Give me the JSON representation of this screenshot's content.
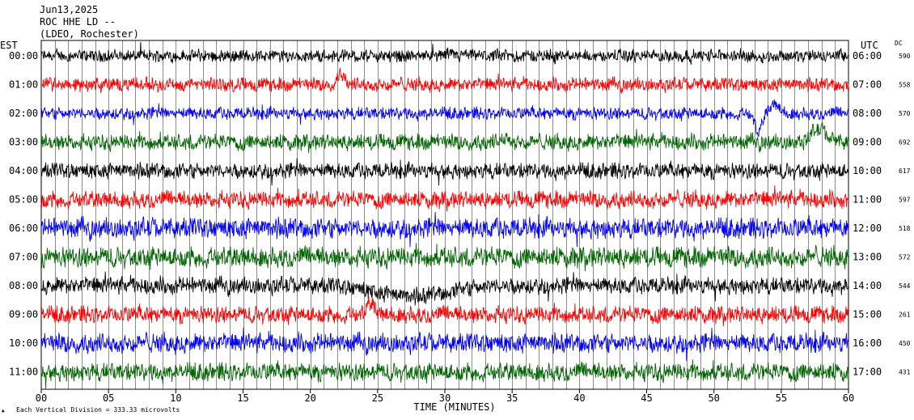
{
  "header": {
    "date": "Jun13,2025",
    "station": "ROC HHE LD --",
    "network": "(LDEO, Rochester)"
  },
  "labels": {
    "left_zone": "EST",
    "right_zone": "UTC",
    "dc_header": "DC",
    "x_axis_title": "TIME (MINUTES)",
    "scale_note": "Each Vertical Division =  333.33 microvolts"
  },
  "colors": {
    "background": "#ffffff",
    "grid": "#000000",
    "trace_cycle": [
      "#000000",
      "#ff0000",
      "#0000ff",
      "#006400"
    ]
  },
  "chart_data": {
    "type": "line",
    "title": "ROC HHE LD --",
    "xlabel": "TIME (MINUTES)",
    "ylabel": "",
    "xlim": [
      0,
      60
    ],
    "x_ticks": [
      0,
      5,
      10,
      15,
      20,
      25,
      30,
      35,
      40,
      45,
      50,
      55,
      60
    ],
    "x_tick_labels": [
      "00",
      "05",
      "10",
      "15",
      "20",
      "25",
      "30",
      "35",
      "40",
      "45",
      "50",
      "55",
      "60"
    ],
    "vertical_division_microvolts": 333.33,
    "grid": true,
    "series": [
      {
        "est": "00:00",
        "utc": "06:00",
        "dc": "590",
        "color": "#000000",
        "noise": 0.55,
        "events": []
      },
      {
        "est": "01:00",
        "utc": "07:00",
        "dc": "558",
        "color": "#ff0000",
        "noise": 0.6,
        "events": [
          {
            "minute": 22.3,
            "amp": 1.3,
            "width": 0.4
          }
        ]
      },
      {
        "est": "02:00",
        "utc": "08:00",
        "dc": "570",
        "color": "#0000ff",
        "noise": 0.55,
        "events": [
          {
            "minute": 53.3,
            "amp": -2.2,
            "width": 0.35
          },
          {
            "minute": 54.5,
            "amp": 1.0,
            "width": 0.5
          }
        ]
      },
      {
        "est": "03:00",
        "utc": "09:00",
        "dc": "692",
        "color": "#006400",
        "noise": 0.7,
        "events": [
          {
            "minute": 34.6,
            "amp": 0.6,
            "width": 0.4
          },
          {
            "minute": 57.8,
            "amp": 1.4,
            "width": 0.8
          }
        ]
      },
      {
        "est": "04:00",
        "utc": "10:00",
        "dc": "617",
        "color": "#000000",
        "noise": 0.7,
        "events": []
      },
      {
        "est": "05:00",
        "utc": "11:00",
        "dc": "597",
        "color": "#ff0000",
        "noise": 0.75,
        "events": []
      },
      {
        "est": "06:00",
        "utc": "12:00",
        "dc": "518",
        "color": "#0000ff",
        "noise": 0.9,
        "events": []
      },
      {
        "est": "07:00",
        "utc": "13:00",
        "dc": "572",
        "color": "#006400",
        "noise": 0.9,
        "events": []
      },
      {
        "est": "08:00",
        "utc": "14:00",
        "dc": "544",
        "color": "#000000",
        "noise": 0.75,
        "events": [
          {
            "minute": 27.5,
            "amp": -1.2,
            "width": 3.5
          }
        ]
      },
      {
        "est": "09:00",
        "utc": "15:00",
        "dc": "261",
        "color": "#ff0000",
        "noise": 0.75,
        "events": [
          {
            "minute": 24.5,
            "amp": 1.3,
            "width": 0.4
          }
        ]
      },
      {
        "est": "10:00",
        "utc": "16:00",
        "dc": "450",
        "color": "#0000ff",
        "noise": 0.85,
        "events": []
      },
      {
        "est": "11:00",
        "utc": "17:00",
        "dc": "431",
        "color": "#006400",
        "noise": 0.8,
        "events": []
      }
    ]
  }
}
